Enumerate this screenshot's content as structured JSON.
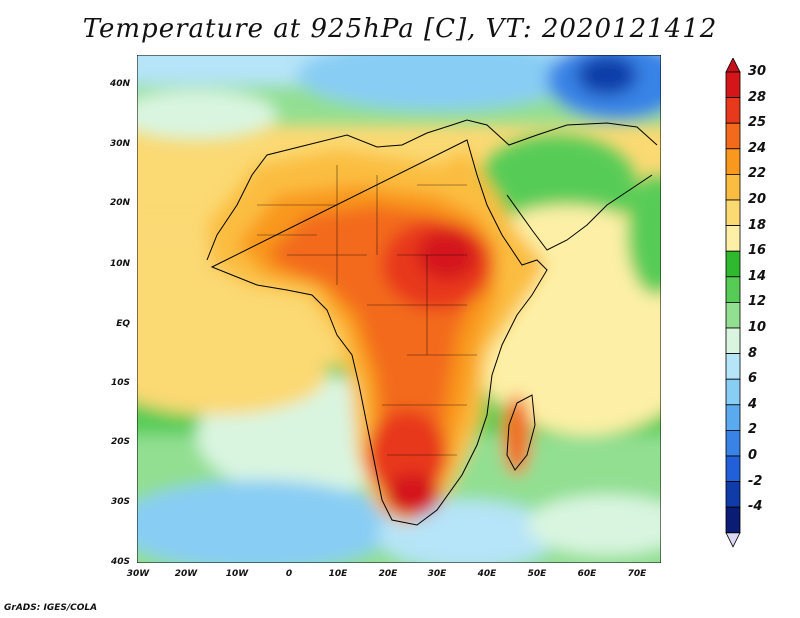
{
  "title": "Temperature at 925hPa [C], VT: 2020121412",
  "footer": "GrADS: IGES/COLA",
  "axes": {
    "lat_labels": [
      "40N",
      "30N",
      "20N",
      "10N",
      "EQ",
      "10S",
      "20S",
      "30S",
      "40S"
    ],
    "lon_labels": [
      "30W",
      "20W",
      "10W",
      "0",
      "10E",
      "20E",
      "30E",
      "40E",
      "50E",
      "60E",
      "70E"
    ]
  },
  "colorbar": {
    "labels": [
      "30",
      "28",
      "25",
      "24",
      "22",
      "20",
      "18",
      "16",
      "14",
      "12",
      "10",
      "8",
      "6",
      "4",
      "2",
      "0",
      "-2",
      "-4"
    ],
    "colors": [
      "#d4161a",
      "#e8391c",
      "#f36a1c",
      "#f9981f",
      "#fbbd41",
      "#fbd973",
      "#fdf0a6",
      "#2eb92e",
      "#56cc56",
      "#92df92",
      "#d9f5e0",
      "#b6e4f8",
      "#88cdf4",
      "#5aaaf0",
      "#3983e6",
      "#2160d8",
      "#0f3ca8",
      "#0b1c74"
    ]
  }
}
